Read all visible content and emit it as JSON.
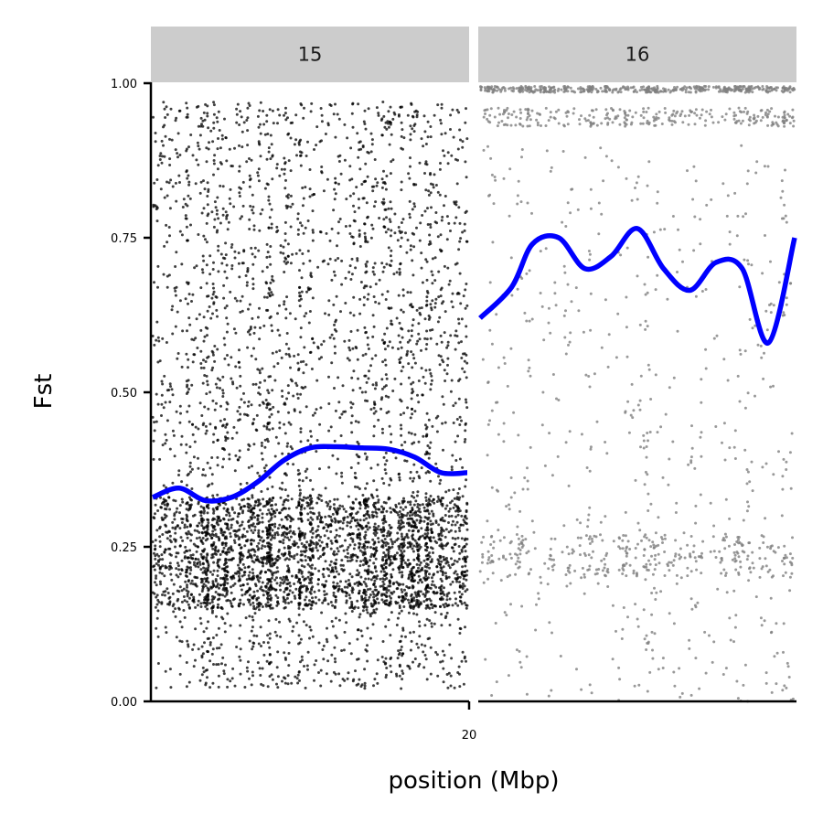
{
  "chart_data": {
    "type": "scatter",
    "ylabel": "Fst",
    "xlabel": "position (Mbp)",
    "ylim": [
      0,
      1
    ],
    "y_ticks": [
      "0.00",
      "0.25",
      "0.50",
      "0.75",
      "1.00"
    ],
    "x_ticks": [
      "20"
    ],
    "grid": false,
    "legend": "none",
    "strip_fill": "#cccccc",
    "smooth_color": "#0000ff",
    "panels": [
      {
        "label": "15",
        "point_color": "#000000",
        "x_range_mbp": [
          17.0,
          20.0
        ],
        "point_distribution": [
          {
            "y_min": 0.02,
            "y_max": 0.97,
            "share": 0.55
          },
          {
            "y_min": 0.15,
            "y_max": 0.33,
            "share": 0.45
          }
        ],
        "smooth": {
          "x": [
            17.0,
            17.25,
            17.5,
            17.75,
            18.0,
            18.25,
            18.5,
            18.75,
            19.0,
            19.25,
            19.5,
            19.75,
            20.0
          ],
          "y": [
            0.33,
            0.345,
            0.325,
            0.33,
            0.355,
            0.39,
            0.41,
            0.412,
            0.41,
            0.408,
            0.395,
            0.37,
            0.37
          ]
        }
      },
      {
        "label": "16",
        "point_color": "#808080",
        "x_range_mbp": [
          20.0,
          23.0
        ],
        "point_distribution": [
          {
            "y_min": 0.985,
            "y_max": 0.995,
            "share": 0.28
          },
          {
            "y_min": 0.93,
            "y_max": 0.96,
            "share": 0.17
          },
          {
            "y_min": 0.2,
            "y_max": 0.27,
            "share": 0.18
          },
          {
            "y_min": 0.0,
            "y_max": 0.9,
            "share": 0.37
          }
        ],
        "smooth": {
          "x": [
            20.0,
            20.3,
            20.5,
            20.75,
            21.0,
            21.25,
            21.5,
            21.75,
            22.0,
            22.25,
            22.5,
            22.75,
            23.0
          ],
          "y": [
            0.62,
            0.67,
            0.74,
            0.75,
            0.7,
            0.72,
            0.765,
            0.7,
            0.665,
            0.71,
            0.7,
            0.58,
            0.75
          ]
        }
      }
    ]
  }
}
